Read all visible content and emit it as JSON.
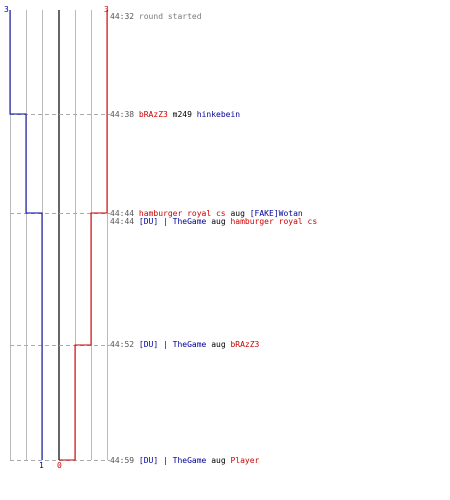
{
  "colors": {
    "team_red": "#cc0000",
    "team_blue": "#0000aa",
    "grid": "#bbbbbb",
    "center_line": "#666666",
    "dashed_guide": "#aaaaaa",
    "timestamp": "#555555"
  },
  "scores": {
    "blue_start": "3",
    "red_start": "3",
    "blue_end": "1",
    "red_end": "0"
  },
  "events": [
    {
      "time": "44:32",
      "text": "round started"
    },
    {
      "time": "44:38",
      "killer": "bRAzZ3",
      "killer_team": "red",
      "weapon": "m249",
      "victim": "hinkebein",
      "victim_team": "blue"
    },
    {
      "time": "44:44",
      "killer": "hamburger royal cs",
      "killer_team": "red",
      "weapon": "aug",
      "victim": "[FAKE]Wotan",
      "victim_team": "blue"
    },
    {
      "time": "44:44",
      "killer": "[DU] | TheGame",
      "killer_team": "blue",
      "weapon": "aug",
      "victim": "hamburger royal cs",
      "victim_team": "red"
    },
    {
      "time": "44:52",
      "killer": "[DU] | TheGame",
      "killer_team": "blue",
      "weapon": "aug",
      "victim": "bRAzZ3",
      "victim_team": "red"
    },
    {
      "time": "44:59",
      "killer": "[DU] | TheGame",
      "killer_team": "blue",
      "weapon": "aug",
      "victim": "Player",
      "victim_team": "red"
    }
  ]
}
